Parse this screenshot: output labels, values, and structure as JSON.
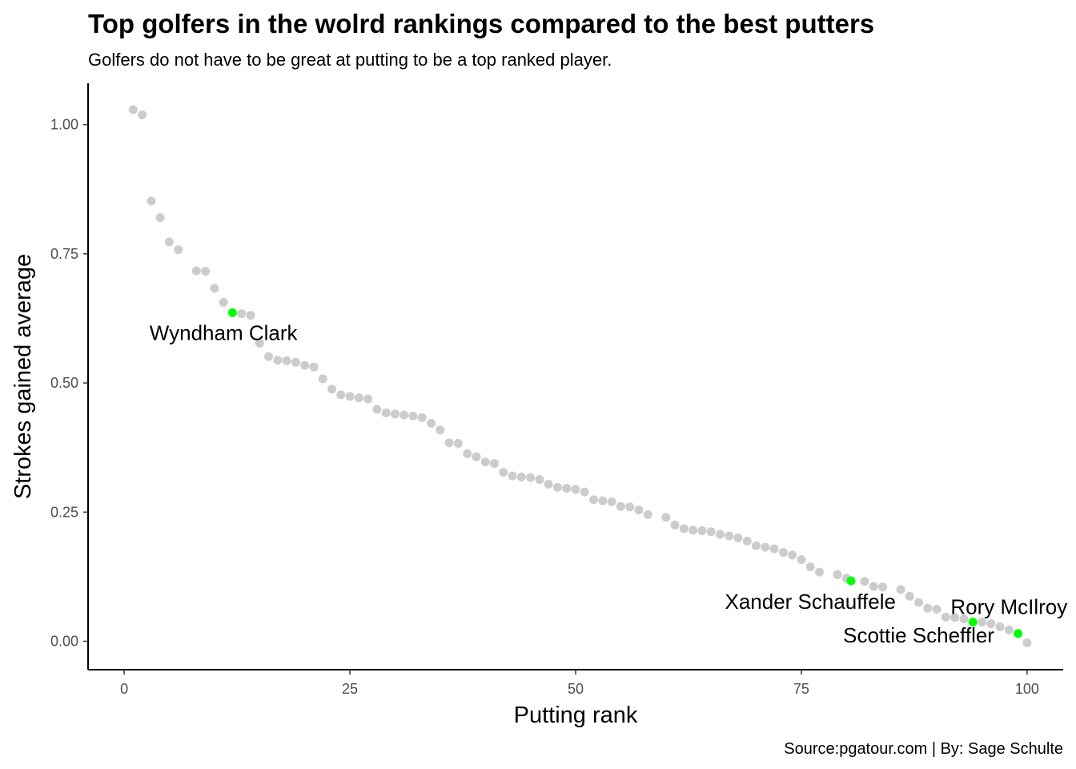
{
  "chart_data": {
    "type": "scatter",
    "title": "Top golfers in the wolrd rankings compared to the best putters",
    "subtitle": "Golfers do not have to be great at putting to be a top ranked player.",
    "xlabel": "Putting rank",
    "ylabel": "Strokes gained average",
    "caption": "Source:pgatour.com | By: Sage Schulte",
    "xlim": [
      -4,
      104
    ],
    "ylim": [
      -0.055,
      1.08
    ],
    "x_ticks": [
      0,
      25,
      50,
      75,
      100
    ],
    "x_tick_labels": [
      "0",
      "25",
      "50",
      "75",
      "100"
    ],
    "y_ticks": [
      0,
      0.25,
      0.5,
      0.75,
      1.0
    ],
    "y_tick_labels": [
      "0.00",
      "0.25",
      "0.50",
      "0.75",
      "1.00"
    ],
    "grid": false,
    "colors": {
      "points": "#cccccc",
      "highlight": "#00ff00",
      "axis": "#000000"
    },
    "points": [
      [
        1,
        1.029
      ],
      [
        2,
        1.019
      ],
      [
        3,
        0.852
      ],
      [
        4,
        0.82
      ],
      [
        5,
        0.773
      ],
      [
        6,
        0.758
      ],
      [
        8,
        0.717
      ],
      [
        9,
        0.716
      ],
      [
        10,
        0.683
      ],
      [
        11,
        0.656
      ],
      [
        13,
        0.634
      ],
      [
        14,
        0.631
      ],
      [
        15,
        0.577
      ],
      [
        16,
        0.551
      ],
      [
        17,
        0.544
      ],
      [
        18,
        0.543
      ],
      [
        19,
        0.54
      ],
      [
        20,
        0.534
      ],
      [
        21,
        0.531
      ],
      [
        22,
        0.508
      ],
      [
        23,
        0.488
      ],
      [
        24,
        0.477
      ],
      [
        25,
        0.474
      ],
      [
        26,
        0.471
      ],
      [
        27,
        0.469
      ],
      [
        28,
        0.449
      ],
      [
        29,
        0.442
      ],
      [
        30,
        0.44
      ],
      [
        31,
        0.438
      ],
      [
        32,
        0.436
      ],
      [
        33,
        0.433
      ],
      [
        34,
        0.422
      ],
      [
        35,
        0.409
      ],
      [
        36,
        0.384
      ],
      [
        37,
        0.383
      ],
      [
        38,
        0.363
      ],
      [
        39,
        0.357
      ],
      [
        40,
        0.347
      ],
      [
        41,
        0.344
      ],
      [
        42,
        0.327
      ],
      [
        43,
        0.32
      ],
      [
        44,
        0.318
      ],
      [
        45,
        0.317
      ],
      [
        46,
        0.313
      ],
      [
        47,
        0.304
      ],
      [
        48,
        0.298
      ],
      [
        49,
        0.296
      ],
      [
        50,
        0.294
      ],
      [
        51,
        0.289
      ],
      [
        52,
        0.274
      ],
      [
        53,
        0.272
      ],
      [
        54,
        0.27
      ],
      [
        55,
        0.261
      ],
      [
        56,
        0.26
      ],
      [
        57,
        0.254
      ],
      [
        58,
        0.245
      ],
      [
        60,
        0.24
      ],
      [
        61,
        0.225
      ],
      [
        62,
        0.218
      ],
      [
        63,
        0.215
      ],
      [
        64,
        0.214
      ],
      [
        65,
        0.212
      ],
      [
        66,
        0.207
      ],
      [
        67,
        0.204
      ],
      [
        68,
        0.2
      ],
      [
        69,
        0.194
      ],
      [
        70,
        0.185
      ],
      [
        71,
        0.182
      ],
      [
        72,
        0.179
      ],
      [
        73,
        0.172
      ],
      [
        74,
        0.167
      ],
      [
        75,
        0.158
      ],
      [
        76,
        0.144
      ],
      [
        77,
        0.134
      ],
      [
        79,
        0.129
      ],
      [
        80,
        0.122
      ],
      [
        82,
        0.116
      ],
      [
        83,
        0.106
      ],
      [
        84,
        0.105
      ],
      [
        86,
        0.1
      ],
      [
        87,
        0.087
      ],
      [
        88,
        0.075
      ],
      [
        89,
        0.064
      ],
      [
        90,
        0.062
      ],
      [
        91,
        0.047
      ],
      [
        92,
        0.046
      ],
      [
        93,
        0.043
      ],
      [
        95,
        0.037
      ],
      [
        96,
        0.034
      ],
      [
        97,
        0.028
      ],
      [
        98,
        0.022
      ],
      [
        100,
        -0.003
      ]
    ],
    "highlighted": [
      {
        "name": "Wyndham Clark",
        "x": 12,
        "y": 0.636,
        "label_x": 11,
        "label_y": 0.597
      },
      {
        "name": "Xander Schauffele",
        "x": 80.5,
        "y": 0.117,
        "label_x": 76,
        "label_y": 0.077
      },
      {
        "name": "Rory McIlroy",
        "x": 94,
        "y": 0.037,
        "label_x": 98,
        "label_y": 0.067
      },
      {
        "name": "Scottie Scheffler",
        "x": 99,
        "y": 0.015,
        "label_x": 88,
        "label_y": 0.012
      }
    ]
  }
}
